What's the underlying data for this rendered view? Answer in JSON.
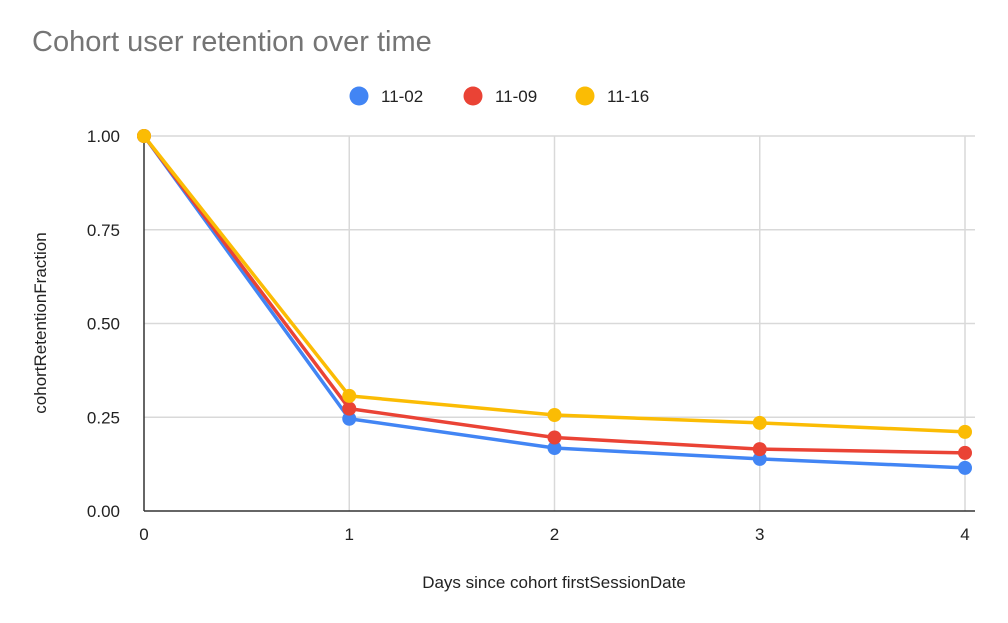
{
  "chart_data": {
    "type": "line",
    "title": "Cohort user retention over time",
    "xlabel": "Days since cohort firstSessionDate",
    "ylabel": "cohortRetentionFraction",
    "x": [
      0,
      1,
      2,
      3,
      4
    ],
    "xticks": [
      "0",
      "1",
      "2",
      "3",
      "4"
    ],
    "yticks": [
      "0.00",
      "0.25",
      "0.50",
      "0.75",
      "1.00"
    ],
    "xlim": [
      0,
      4
    ],
    "ylim": [
      0,
      1
    ],
    "grid": true,
    "legend_position": "top",
    "series": [
      {
        "name": "11-02",
        "color": "#4285F4",
        "values": [
          1.0,
          0.246,
          0.168,
          0.139,
          0.115
        ]
      },
      {
        "name": "11-09",
        "color": "#EA4335",
        "values": [
          1.0,
          0.273,
          0.196,
          0.165,
          0.155
        ]
      },
      {
        "name": "11-16",
        "color": "#FBBC04",
        "values": [
          1.0,
          0.307,
          0.256,
          0.235,
          0.211
        ]
      }
    ]
  }
}
